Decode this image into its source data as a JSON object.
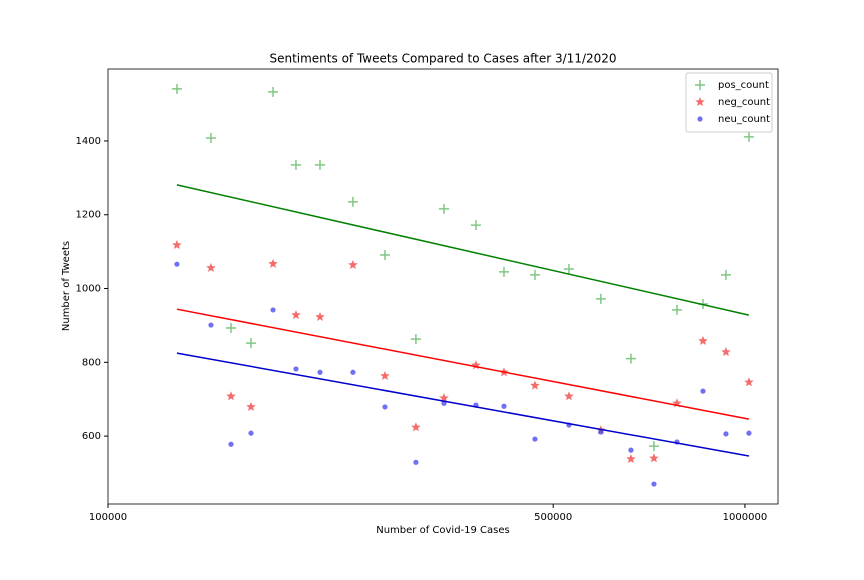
{
  "chart_data": {
    "type": "scatter",
    "title": "Sentiments of Tweets Compared to Cases after 3/11/2020",
    "xlabel": "Number of Covid-19 Cases",
    "ylabel": "Number of Tweets",
    "xscale": "log",
    "xlim": [
      100000,
      1127000
    ],
    "xticks": [
      100000,
      500000,
      1000000
    ],
    "ylim": [
      416,
      1595
    ],
    "yticks": [
      600,
      800,
      1000,
      1200,
      1400
    ],
    "legend": "upper right",
    "x": [
      128300,
      145100,
      156000,
      167700,
      181600,
      197300,
      215200,
      242400,
      272200,
      304400,
      336900,
      378200,
      418500,
      468100,
      529300,
      594000,
      662300,
      719700,
      782200,
      859300,
      933700,
      1014600
    ],
    "series": [
      {
        "name": "pos_count",
        "color": "#4caf50",
        "line_color": "#008000",
        "marker": "+",
        "values": [
          1541,
          1408,
          893,
          852,
          1533,
          1335,
          1335,
          1235,
          1091,
          863,
          1216,
          1172,
          1045,
          1037,
          1053,
          972,
          810,
          573,
          942,
          958,
          1037,
          1411
        ],
        "fit": [
          1281,
          928
        ]
      },
      {
        "name": "neg_count",
        "color": "#f03c3c",
        "line_color": "#ff0000",
        "marker": "*",
        "values": [
          1118,
          1056,
          708,
          679,
          1067,
          928,
          923,
          1064,
          763,
          624,
          703,
          792,
          773,
          737,
          708,
          616,
          538,
          540,
          689,
          858,
          828,
          746
        ],
        "fit": [
          944,
          646
        ]
      },
      {
        "name": "neu_count",
        "color": "#4040ee",
        "line_color": "#0000cc",
        "marker": "o",
        "values": [
          1066,
          901,
          578,
          608,
          942,
          782,
          773,
          773,
          679,
          529,
          689,
          684,
          681,
          592,
          630,
          611,
          562,
          470,
          584,
          722,
          606,
          608
        ],
        "fit": [
          825,
          546
        ]
      }
    ]
  }
}
